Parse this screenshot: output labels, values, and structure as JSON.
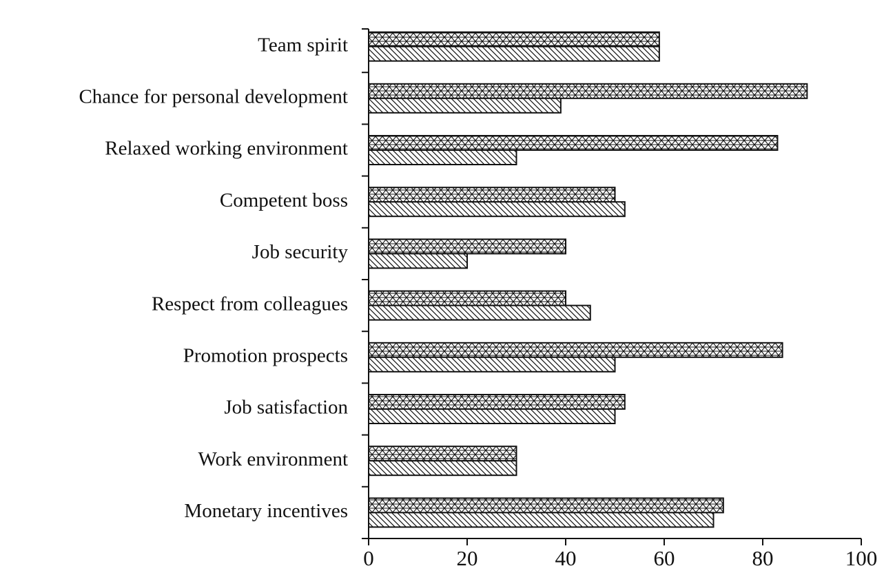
{
  "chart_data": {
    "type": "barh",
    "categories": [
      "Team spirit",
      "Chance for personal development",
      "Relaxed working environment",
      "Competent boss",
      "Job security",
      "Respect from colleagues",
      "Promotion prospects",
      "Job satisfaction",
      "Work environment",
      "Monetary incentives"
    ],
    "series": [
      {
        "color": "#ffffff",
        "pattern": "stars",
        "values": [
          59,
          89,
          83,
          50,
          40,
          40,
          84,
          52,
          30,
          72
        ]
      },
      {
        "color": "#ffffff",
        "pattern": "hatch",
        "values": [
          59,
          39,
          30,
          52,
          20,
          45,
          50,
          50,
          30,
          70
        ]
      }
    ],
    "xlim": [
      0,
      100
    ],
    "xticks": [
      0,
      20,
      40,
      60,
      80,
      100
    ],
    "grid": false
  }
}
